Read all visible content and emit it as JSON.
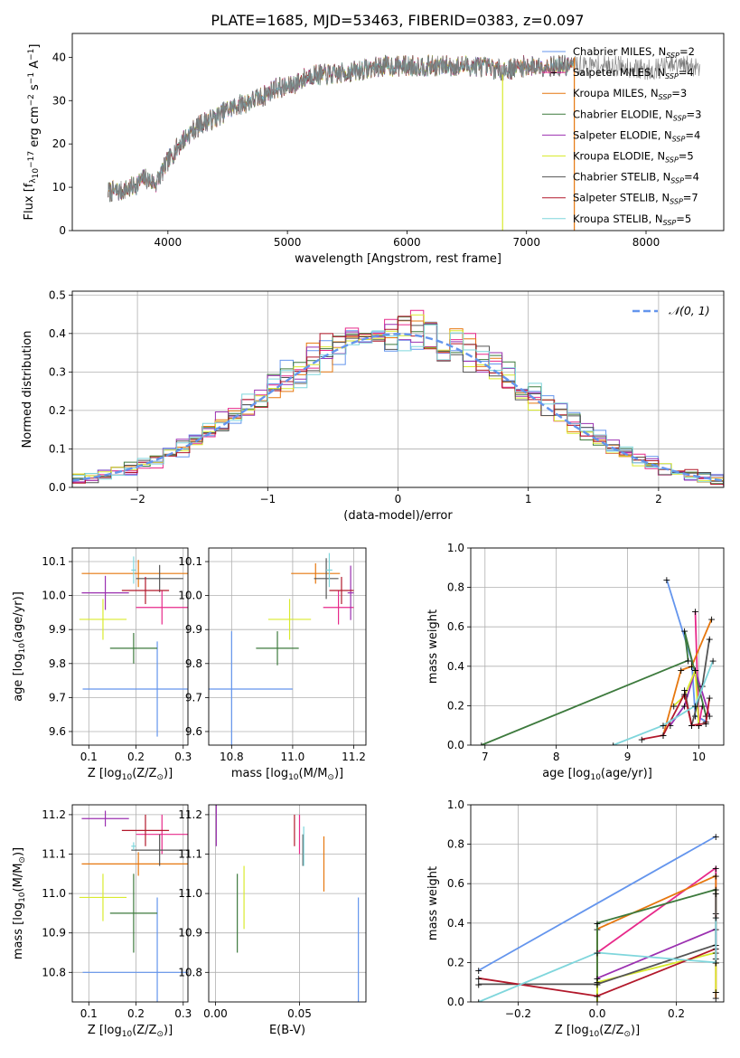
{
  "figure_title": "PLATE=1685, MJD=53463, FIBERID=0383, z=0.097",
  "colors": {
    "series": [
      "#6495ed",
      "#e7298a",
      "#e6770e",
      "#3d7a3d",
      "#9b30b0",
      "#d9ea2e",
      "#555555",
      "#b2182b",
      "#7fd6dc"
    ],
    "legend_styles": [
      "#6495ed",
      "#6495ed",
      "#e6770e",
      "#3d7a3d",
      "#9b30b0",
      "#d9ea2e",
      "#555555",
      "#b2182b",
      "#7fd6dc"
    ],
    "gauss": "#6495ed",
    "grid": "#b0b0b0"
  },
  "chart_data": [
    {
      "id": "spectrum",
      "type": "line",
      "title": "PLATE=1685, MJD=53463, FIBERID=0383, z=0.097",
      "xlabel": "wavelength [Angstrom, rest frame]",
      "ylabel": "Flux [f",
      "ylabel_parts": [
        "Flux [f",
        "λ",
        "10",
        "−17",
        " erg cm",
        "−2",
        " s",
        "−1",
        " A",
        "−1",
        "]"
      ],
      "xlim": [
        3200,
        8650
      ],
      "ylim": [
        0,
        45.5
      ],
      "xticks": [
        4000,
        5000,
        6000,
        7000,
        8000
      ],
      "yticks": [
        0,
        10,
        20,
        30,
        40
      ],
      "grid": false,
      "legend_position": "top-right",
      "legend": [
        {
          "name": "Chabrier MILES, N",
          "sub": "SSP",
          "tail": "=2"
        },
        {
          "name": "Salpeter MILES, N",
          "sub": "SSP",
          "tail": "=4"
        },
        {
          "name": "Kroupa MILES, N",
          "sub": "SSP",
          "tail": "=3"
        },
        {
          "name": "Chabrier ELODIE, N",
          "sub": "SSP",
          "tail": "=3"
        },
        {
          "name": "Salpeter ELODIE, N",
          "sub": "SSP",
          "tail": "=4"
        },
        {
          "name": "Kroupa ELODIE, N",
          "sub": "SSP",
          "tail": "=5"
        },
        {
          "name": "Chabrier STELIB, N",
          "sub": "SSP",
          "tail": "=4"
        },
        {
          "name": "Salpeter STELIB, N",
          "sub": "SSP",
          "tail": "=7"
        },
        {
          "name": "Kroupa STELIB, N",
          "sub": "SSP",
          "tail": "=5"
        }
      ],
      "continuum_x": [
        3500,
        3600,
        3700,
        3800,
        3900,
        4000,
        4100,
        4200,
        4300,
        4400,
        4500,
        4600,
        4700,
        4800,
        4900,
        5000,
        5200,
        5400,
        5600,
        5800,
        6000,
        6200,
        6400,
        6600,
        6800,
        7000,
        7200,
        7400,
        7600,
        7800,
        8000,
        8200
      ],
      "continuum_y": [
        9,
        9,
        10,
        12,
        11,
        16,
        20,
        23,
        25,
        26,
        28,
        29,
        30,
        31,
        33,
        33,
        36,
        36,
        37,
        38,
        38,
        38,
        38,
        38,
        37,
        38,
        38,
        38,
        38,
        38,
        37,
        38
      ],
      "model_xrange": [
        3500,
        7400
      ],
      "data_xrange": [
        3500,
        8450
      ]
    },
    {
      "id": "residuals",
      "type": "bar",
      "xlabel": "(data-model)/error",
      "ylabel": "Normed distribution",
      "xlim": [
        -2.5,
        2.5
      ],
      "ylim": [
        0,
        0.51
      ],
      "xticks": [
        -2,
        -1,
        0,
        1,
        2
      ],
      "xtick_labels": [
        "−2",
        "−1",
        "0",
        "1",
        "2"
      ],
      "yticks": [
        0.0,
        0.1,
        0.2,
        0.3,
        0.4,
        0.5
      ],
      "ytick_labels": [
        "0.0",
        "0.1",
        "0.2",
        "0.3",
        "0.4",
        "0.5"
      ],
      "grid": true,
      "legend_position": "top-right",
      "legend": [
        {
          "name": "𝒩(0, 1)",
          "style": "dashed"
        }
      ],
      "bin_width": 0.1,
      "gauss": {
        "mean": 0,
        "sigma": 1
      }
    },
    {
      "id": "age-vs-Z",
      "type": "scatter",
      "xlabel": "Z [log",
      "xlabel_parts": [
        "Z [log",
        "10",
        "(Z/Z",
        "⊙",
        ")]"
      ],
      "ylabel": "age  [log",
      "ylabel_parts": [
        "age  [log",
        "10",
        "(age/yr)]"
      ],
      "xlim": [
        0.065,
        0.31
      ],
      "ylim": [
        9.56,
        10.14
      ],
      "xticks": [
        0.1,
        0.2,
        0.3
      ],
      "yticks": [
        9.6,
        9.7,
        9.8,
        9.9,
        10.0,
        10.1
      ],
      "ytick_labels": [
        "9.6",
        "9.7",
        "9.8",
        "9.9",
        "10.0",
        "10.1"
      ],
      "grid": true,
      "points": [
        {
          "x": 0.245,
          "xerr": 0.158,
          "y": 9.725,
          "yerr": 0.14,
          "c": 0
        },
        {
          "x": 0.255,
          "xerr": 0.055,
          "y": 9.965,
          "yerr": 0.05,
          "c": 1
        },
        {
          "x": 0.205,
          "xerr": 0.12,
          "y": 10.065,
          "yerr": 0.04,
          "c": 2
        },
        {
          "x": 0.195,
          "xerr": 0.05,
          "y": 9.845,
          "yerr": 0.045,
          "c": 3
        },
        {
          "x": 0.135,
          "xerr": 0.05,
          "y": 10.008,
          "yerr": 0.05,
          "c": 4
        },
        {
          "x": 0.13,
          "xerr": 0.05,
          "y": 9.93,
          "yerr": 0.06,
          "c": 5
        },
        {
          "x": 0.25,
          "xerr": 0.05,
          "y": 10.05,
          "yerr": 0.04,
          "c": 6
        },
        {
          "x": 0.22,
          "xerr": 0.05,
          "y": 10.015,
          "yerr": 0.04,
          "c": 7
        },
        {
          "x": 0.195,
          "xerr": 0.005,
          "y": 10.075,
          "yerr": 0.04,
          "c": 8
        }
      ]
    },
    {
      "id": "age-vs-mass",
      "type": "scatter",
      "xlabel": "mass [log",
      "xlabel_parts": [
        "mass [log",
        "10",
        "(M/M",
        "⊙",
        ")]"
      ],
      "ylabel": "",
      "xlim": [
        10.725,
        11.24
      ],
      "ylim": [
        9.56,
        10.14
      ],
      "xticks": [
        10.8,
        11.0,
        11.2
      ],
      "xtick_labels": [
        "10.8",
        "11.0",
        "11.2"
      ],
      "yticks": [
        9.6,
        9.7,
        9.8,
        9.9,
        10.0,
        10.1
      ],
      "ytick_labels": [
        "9.6",
        "9.7",
        "9.8",
        "9.9",
        "10.0",
        "10.1"
      ],
      "grid": true,
      "points": [
        {
          "x": 10.8,
          "xerr": 0.2,
          "y": 9.725,
          "yerr": 0.17,
          "c": 0
        },
        {
          "x": 11.15,
          "xerr": 0.05,
          "y": 9.965,
          "yerr": 0.05,
          "c": 1
        },
        {
          "x": 11.075,
          "xerr": 0.08,
          "y": 10.065,
          "yerr": 0.03,
          "c": 2
        },
        {
          "x": 10.95,
          "xerr": 0.07,
          "y": 9.845,
          "yerr": 0.05,
          "c": 3
        },
        {
          "x": 11.19,
          "xerr": 0.01,
          "y": 10.008,
          "yerr": 0.08,
          "c": 4
        },
        {
          "x": 10.99,
          "xerr": 0.07,
          "y": 9.93,
          "yerr": 0.06,
          "c": 5
        },
        {
          "x": 11.11,
          "xerr": 0.04,
          "y": 10.05,
          "yerr": 0.06,
          "c": 6
        },
        {
          "x": 11.16,
          "xerr": 0.04,
          "y": 10.015,
          "yerr": 0.04,
          "c": 7
        },
        {
          "x": 11.12,
          "xerr": 0.01,
          "y": 10.075,
          "yerr": 0.05,
          "c": 8
        }
      ]
    },
    {
      "id": "weights-vs-age",
      "type": "line",
      "xlabel": "age  [log",
      "xlabel_parts": [
        "age  [log",
        "10",
        "(age/yr)]"
      ],
      "ylabel": "mass weight",
      "xlim": [
        6.8,
        10.35
      ],
      "ylim": [
        0,
        1.0
      ],
      "xticks": [
        7,
        8,
        9,
        10
      ],
      "yticks": [
        0.0,
        0.2,
        0.4,
        0.6,
        0.8,
        1.0
      ],
      "ytick_labels": [
        "0.0",
        "0.2",
        "0.4",
        "0.6",
        "0.8",
        "1.0"
      ],
      "grid": true,
      "series": [
        {
          "c": 0,
          "x": [
            9.55,
            9.9,
            9.95,
            10.1
          ],
          "y": [
            0.84,
            0.43,
            0.15,
            0.12
          ]
        },
        {
          "c": 1,
          "x": [
            9.95,
            10.0,
            10.05
          ],
          "y": [
            0.68,
            0.1,
            0.2
          ]
        },
        {
          "c": 2,
          "x": [
            9.5,
            9.75,
            9.9,
            10.18
          ],
          "y": [
            0.05,
            0.38,
            0.4,
            0.64
          ]
        },
        {
          "c": 3,
          "x": [
            6.95,
            9.85,
            9.8,
            10.1
          ],
          "y": [
            0.0,
            0.43,
            0.58,
            0.15
          ]
        },
        {
          "c": 4,
          "x": [
            9.6,
            9.8,
            9.95,
            10.15
          ],
          "y": [
            0.1,
            0.2,
            0.38,
            0.15
          ]
        },
        {
          "c": 5,
          "x": [
            9.65,
            9.8,
            9.95,
            10.0
          ],
          "y": [
            0.2,
            0.25,
            0.38,
            0.1
          ]
        },
        {
          "c": 6,
          "x": [
            9.8,
            9.9,
            10.05,
            10.15
          ],
          "y": [
            0.28,
            0.1,
            0.3,
            0.54
          ]
        },
        {
          "c": 7,
          "x": [
            9.2,
            9.5,
            9.8,
            9.9,
            10.1,
            10.15
          ],
          "y": [
            0.03,
            0.05,
            0.26,
            0.1,
            0.11,
            0.24
          ]
        },
        {
          "c": 8,
          "x": [
            8.8,
            9.5,
            9.95,
            10.2
          ],
          "y": [
            0.0,
            0.1,
            0.2,
            0.43
          ]
        }
      ]
    },
    {
      "id": "mass-vs-Z",
      "type": "scatter",
      "xlabel": "Z [log",
      "xlabel_parts": [
        "Z [log",
        "10",
        "(Z/Z",
        "⊙",
        ")]"
      ],
      "ylabel": "mass [log",
      "ylabel_parts": [
        "mass [log",
        "10",
        "(M/M",
        "⊙",
        ")]"
      ],
      "xlim": [
        0.065,
        0.31
      ],
      "ylim": [
        10.725,
        11.225
      ],
      "xticks": [
        0.1,
        0.2,
        0.3
      ],
      "yticks": [
        10.8,
        10.9,
        11.0,
        11.1,
        11.2
      ],
      "ytick_labels": [
        "10.8",
        "10.9",
        "11.0",
        "11.1",
        "11.2"
      ],
      "grid": true,
      "points": [
        {
          "x": 0.245,
          "xerr": 0.158,
          "y": 10.8,
          "yerr": 0.19,
          "c": 0
        },
        {
          "x": 0.255,
          "xerr": 0.055,
          "y": 11.15,
          "yerr": 0.05,
          "c": 1
        },
        {
          "x": 0.205,
          "xerr": 0.12,
          "y": 11.075,
          "yerr": 0.03,
          "c": 2
        },
        {
          "x": 0.195,
          "xerr": 0.05,
          "y": 10.95,
          "yerr": 0.1,
          "c": 3
        },
        {
          "x": 0.135,
          "xerr": 0.05,
          "y": 11.19,
          "yerr": 0.02,
          "c": 4
        },
        {
          "x": 0.13,
          "xerr": 0.05,
          "y": 10.99,
          "yerr": 0.06,
          "c": 5
        },
        {
          "x": 0.25,
          "xerr": 0.06,
          "y": 11.11,
          "yerr": 0.04,
          "c": 6
        },
        {
          "x": 0.22,
          "xerr": 0.05,
          "y": 11.16,
          "yerr": 0.04,
          "c": 7
        },
        {
          "x": 0.195,
          "xerr": 0.005,
          "y": 11.12,
          "yerr": 0.01,
          "c": 8
        }
      ]
    },
    {
      "id": "mass-vs-ebv",
      "type": "scatter",
      "xlabel": "E(B-V)",
      "ylabel": "",
      "xlim": [
        -0.004,
        0.0895
      ],
      "ylim": [
        10.725,
        11.225
      ],
      "xticks": [
        0.0,
        0.05
      ],
      "xtick_labels": [
        "0.00",
        "0.05"
      ],
      "yticks": [
        10.8,
        10.9,
        11.0,
        11.1,
        11.2
      ],
      "ytick_labels": [
        "10.8",
        "10.9",
        "11.0",
        "11.1",
        "11.2"
      ],
      "grid": true,
      "points": [
        {
          "x": 0.085,
          "xerr": 0,
          "y": 10.8,
          "yerr": 0.19,
          "c": 0
        },
        {
          "x": 0.05,
          "xerr": 0,
          "y": 11.15,
          "yerr": 0.05,
          "c": 1
        },
        {
          "x": 0.0645,
          "xerr": 0,
          "y": 11.075,
          "yerr": 0.07,
          "c": 2
        },
        {
          "x": 0.013,
          "xerr": 0,
          "y": 10.95,
          "yerr": 0.1,
          "c": 3
        },
        {
          "x": 0.0005,
          "xerr": 0,
          "y": 11.19,
          "yerr": 0.07,
          "c": 4
        },
        {
          "x": 0.017,
          "xerr": 0,
          "y": 10.99,
          "yerr": 0.08,
          "c": 5
        },
        {
          "x": 0.052,
          "xerr": 0,
          "y": 11.11,
          "yerr": 0.04,
          "c": 6
        },
        {
          "x": 0.047,
          "xerr": 0,
          "y": 11.16,
          "yerr": 0.04,
          "c": 7
        },
        {
          "x": 0.0525,
          "xerr": 0,
          "y": 11.12,
          "yerr": 0.05,
          "c": 8
        }
      ]
    },
    {
      "id": "weights-vs-Z",
      "type": "line",
      "xlabel": "Z [log",
      "xlabel_parts": [
        "Z [log",
        "10",
        "(Z/Z",
        "⊙",
        ")]"
      ],
      "ylabel": "mass weight",
      "xlim": [
        -0.32,
        0.32
      ],
      "ylim": [
        0,
        1.0
      ],
      "xticks": [
        -0.2,
        0.0,
        0.2
      ],
      "xtick_labels": [
        "−0.2",
        "0.0",
        "0.2"
      ],
      "yticks": [
        0.0,
        0.2,
        0.4,
        0.6,
        0.8,
        1.0
      ],
      "ytick_labels": [
        "0.0",
        "0.2",
        "0.4",
        "0.6",
        "0.8",
        "1.0"
      ],
      "grid": true,
      "series": [
        {
          "c": 0,
          "x": [
            -0.3,
            0.3
          ],
          "y": [
            0.16,
            0.84
          ]
        },
        {
          "c": 1,
          "x": [
            0.0,
            0.3,
            0.3
          ],
          "y": [
            0.25,
            0.68,
            0.05
          ]
        },
        {
          "c": 2,
          "x": [
            0.0,
            0.0,
            0.3,
            0.3
          ],
          "y": [
            0.0,
            0.37,
            0.64,
            0.02
          ]
        },
        {
          "c": 3,
          "x": [
            0.0,
            0.0,
            0.3,
            0.3
          ],
          "y": [
            0.0,
            0.4,
            0.57,
            0.45
          ]
        },
        {
          "c": 4,
          "x": [
            0.0,
            0.3,
            0.3
          ],
          "y": [
            0.12,
            0.37,
            0.22
          ]
        },
        {
          "c": 5,
          "x": [
            0.0,
            0.0,
            0.3,
            0.3
          ],
          "y": [
            0.0,
            0.1,
            0.25,
            0.05
          ]
        },
        {
          "c": 6,
          "x": [
            -0.3,
            0.0,
            0.3,
            0.3
          ],
          "y": [
            0.09,
            0.09,
            0.29,
            0.55
          ]
        },
        {
          "c": 7,
          "x": [
            -0.3,
            0.0,
            0.3,
            0.3
          ],
          "y": [
            0.12,
            0.03,
            0.27,
            0.2
          ]
        },
        {
          "c": 8,
          "x": [
            -0.3,
            0.0,
            0.3,
            0.3
          ],
          "y": [
            0.0,
            0.25,
            0.2,
            0.43
          ]
        }
      ]
    }
  ]
}
